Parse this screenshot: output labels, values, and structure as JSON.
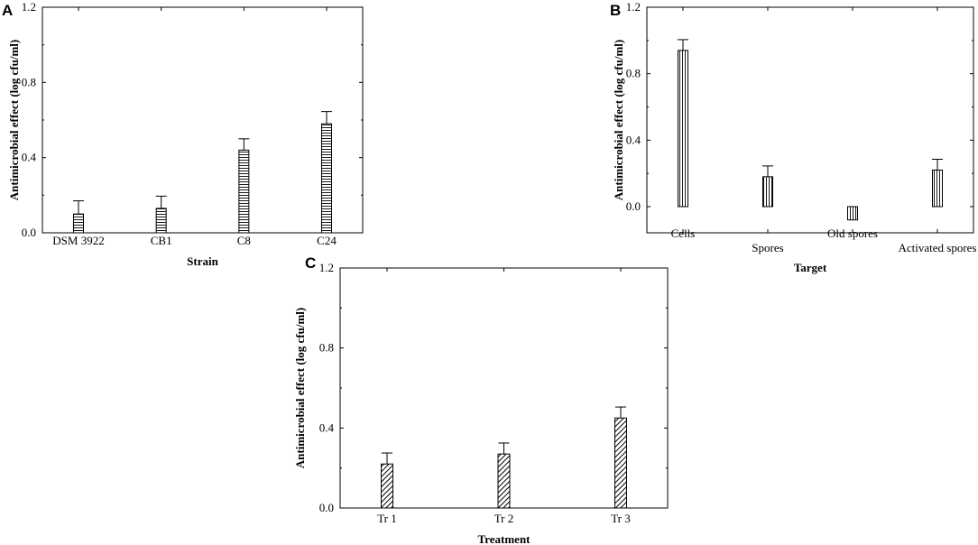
{
  "chart_data": [
    {
      "panel": "A",
      "type": "bar",
      "xlabel": "Strain",
      "ylabel": "Antimicrobial effect (log cfu/ml)",
      "ylim": [
        0,
        1.2
      ],
      "yticks": [
        "0.0",
        "0.4",
        "0.8",
        "1.2"
      ],
      "categories": [
        "DSM 3922",
        "CB1",
        "C8",
        "C24"
      ],
      "values": [
        0.1,
        0.13,
        0.44,
        0.58
      ],
      "errors": [
        0.07,
        0.065,
        0.06,
        0.065
      ],
      "pattern": "horizontal"
    },
    {
      "panel": "B",
      "type": "bar",
      "xlabel": "Target",
      "ylabel": "Antimicrobial effect (log cfu/ml)",
      "ylim": [
        0,
        1.2
      ],
      "yticks": [
        "0.0",
        "0.4",
        "0.8",
        "1.2"
      ],
      "categories": [
        "Cells",
        "Spores",
        "Old spores",
        "Activated spores"
      ],
      "values": [
        0.94,
        0.18,
        -0.08,
        0.22
      ],
      "errors": [
        0.065,
        0.065,
        0,
        0.065
      ],
      "pattern": "vertical"
    },
    {
      "panel": "C",
      "type": "bar",
      "xlabel": "Treatment",
      "ylabel": "Antimicrobial effect (log cfu/ml)",
      "ylim": [
        0,
        1.2
      ],
      "yticks": [
        "0.0",
        "0.4",
        "0.8",
        "1.2"
      ],
      "categories": [
        "Tr 1",
        "Tr 2",
        "Tr 3"
      ],
      "values": [
        0.22,
        0.27,
        0.45
      ],
      "errors": [
        0.055,
        0.055,
        0.055
      ],
      "pattern": "diagonal"
    }
  ]
}
